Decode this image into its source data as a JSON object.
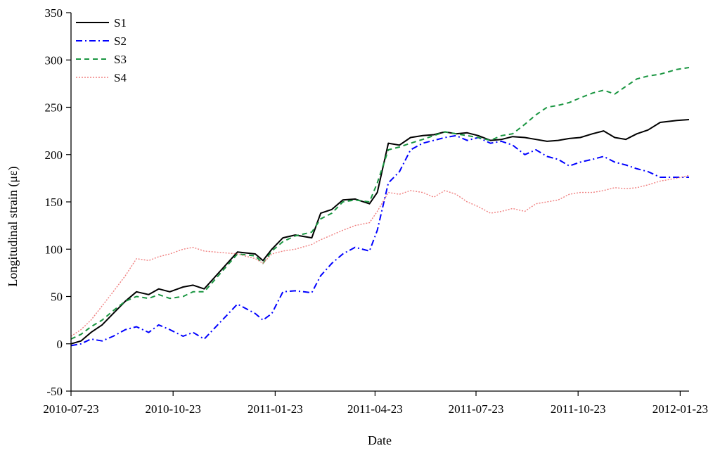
{
  "chart_data": {
    "type": "line",
    "title": "",
    "xlabel": "Date",
    "ylabel": "Longitudinal strain (με)",
    "x_ticks": [
      "2010-07-23",
      "2010-10-23",
      "2011-01-23",
      "2011-04-23",
      "2011-07-23",
      "2011-10-23",
      "2012-01-23"
    ],
    "y_ticks": [
      -50,
      0,
      50,
      100,
      150,
      200,
      250,
      300,
      350
    ],
    "xlim": [
      "2010-07-23",
      "2012-01-31"
    ],
    "ylim": [
      -50,
      350
    ],
    "grid": false,
    "legend_position": "top-left",
    "series": [
      {
        "name": "S1",
        "color": "#000000",
        "style": "solid",
        "points": [
          [
            "2010-07-23",
            0
          ],
          [
            "2010-08-01",
            3
          ],
          [
            "2010-08-10",
            12
          ],
          [
            "2010-08-20",
            20
          ],
          [
            "2010-08-30",
            32
          ],
          [
            "2010-09-10",
            45
          ],
          [
            "2010-09-20",
            55
          ],
          [
            "2010-10-01",
            52
          ],
          [
            "2010-10-10",
            58
          ],
          [
            "2010-10-20",
            55
          ],
          [
            "2010-11-01",
            60
          ],
          [
            "2010-11-10",
            62
          ],
          [
            "2010-11-20",
            58
          ],
          [
            "2010-12-20",
            97
          ],
          [
            "2011-01-05",
            95
          ],
          [
            "2011-01-12",
            88
          ],
          [
            "2011-01-20",
            100
          ],
          [
            "2011-01-30",
            112
          ],
          [
            "2011-02-10",
            115
          ],
          [
            "2011-02-25",
            112
          ],
          [
            "2011-03-05",
            138
          ],
          [
            "2011-03-15",
            142
          ],
          [
            "2011-03-25",
            152
          ],
          [
            "2011-04-05",
            153
          ],
          [
            "2011-04-18",
            148
          ],
          [
            "2011-04-25",
            160
          ],
          [
            "2011-05-05",
            212
          ],
          [
            "2011-05-15",
            210
          ],
          [
            "2011-05-25",
            218
          ],
          [
            "2011-06-05",
            220
          ],
          [
            "2011-06-15",
            221
          ],
          [
            "2011-06-25",
            224
          ],
          [
            "2011-07-05",
            222
          ],
          [
            "2011-07-15",
            223
          ],
          [
            "2011-07-25",
            220
          ],
          [
            "2011-08-05",
            215
          ],
          [
            "2011-08-15",
            216
          ],
          [
            "2011-08-25",
            219
          ],
          [
            "2011-09-05",
            218
          ],
          [
            "2011-09-15",
            216
          ],
          [
            "2011-09-25",
            214
          ],
          [
            "2011-10-05",
            215
          ],
          [
            "2011-10-15",
            217
          ],
          [
            "2011-10-25",
            218
          ],
          [
            "2011-11-05",
            222
          ],
          [
            "2011-11-15",
            225
          ],
          [
            "2011-11-25",
            218
          ],
          [
            "2011-12-05",
            216
          ],
          [
            "2011-12-15",
            222
          ],
          [
            "2011-12-25",
            226
          ],
          [
            "2012-01-05",
            234
          ],
          [
            "2012-01-20",
            236
          ],
          [
            "2012-01-31",
            237
          ]
        ]
      },
      {
        "name": "S2",
        "color": "#0000ff",
        "style": "dashdot",
        "points": [
          [
            "2010-07-23",
            -2
          ],
          [
            "2010-08-01",
            0
          ],
          [
            "2010-08-10",
            5
          ],
          [
            "2010-08-20",
            3
          ],
          [
            "2010-08-30",
            8
          ],
          [
            "2010-09-10",
            15
          ],
          [
            "2010-09-20",
            18
          ],
          [
            "2010-10-01",
            12
          ],
          [
            "2010-10-10",
            20
          ],
          [
            "2010-10-20",
            15
          ],
          [
            "2010-11-01",
            8
          ],
          [
            "2010-11-10",
            12
          ],
          [
            "2010-11-20",
            5
          ],
          [
            "2010-12-20",
            42
          ],
          [
            "2011-01-05",
            32
          ],
          [
            "2011-01-12",
            25
          ],
          [
            "2011-01-20",
            32
          ],
          [
            "2011-01-30",
            55
          ],
          [
            "2011-02-10",
            56
          ],
          [
            "2011-02-25",
            54
          ],
          [
            "2011-03-05",
            72
          ],
          [
            "2011-03-15",
            85
          ],
          [
            "2011-03-25",
            95
          ],
          [
            "2011-04-05",
            102
          ],
          [
            "2011-04-18",
            98
          ],
          [
            "2011-04-25",
            120
          ],
          [
            "2011-05-05",
            170
          ],
          [
            "2011-05-15",
            182
          ],
          [
            "2011-05-25",
            205
          ],
          [
            "2011-06-05",
            212
          ],
          [
            "2011-06-15",
            215
          ],
          [
            "2011-06-25",
            218
          ],
          [
            "2011-07-05",
            220
          ],
          [
            "2011-07-15",
            215
          ],
          [
            "2011-07-25",
            218
          ],
          [
            "2011-08-05",
            212
          ],
          [
            "2011-08-15",
            214
          ],
          [
            "2011-08-25",
            210
          ],
          [
            "2011-09-05",
            200
          ],
          [
            "2011-09-15",
            205
          ],
          [
            "2011-09-25",
            198
          ],
          [
            "2011-10-05",
            195
          ],
          [
            "2011-10-15",
            188
          ],
          [
            "2011-10-25",
            192
          ],
          [
            "2011-11-05",
            195
          ],
          [
            "2011-11-15",
            198
          ],
          [
            "2011-11-25",
            192
          ],
          [
            "2011-12-05",
            189
          ],
          [
            "2011-12-15",
            185
          ],
          [
            "2011-12-25",
            182
          ],
          [
            "2012-01-05",
            176
          ],
          [
            "2012-01-20",
            176
          ],
          [
            "2012-01-31",
            176
          ]
        ]
      },
      {
        "name": "S3",
        "color": "#1a9641",
        "style": "dashed",
        "points": [
          [
            "2010-07-23",
            5
          ],
          [
            "2010-08-01",
            10
          ],
          [
            "2010-08-10",
            18
          ],
          [
            "2010-08-20",
            25
          ],
          [
            "2010-08-30",
            35
          ],
          [
            "2010-09-10",
            45
          ],
          [
            "2010-09-20",
            50
          ],
          [
            "2010-10-01",
            48
          ],
          [
            "2010-10-10",
            52
          ],
          [
            "2010-10-20",
            48
          ],
          [
            "2010-11-01",
            50
          ],
          [
            "2010-11-10",
            55
          ],
          [
            "2010-11-20",
            55
          ],
          [
            "2010-12-20",
            95
          ],
          [
            "2011-01-05",
            93
          ],
          [
            "2011-01-12",
            85
          ],
          [
            "2011-01-20",
            98
          ],
          [
            "2011-01-30",
            108
          ],
          [
            "2011-02-10",
            114
          ],
          [
            "2011-02-25",
            118
          ],
          [
            "2011-03-05",
            132
          ],
          [
            "2011-03-15",
            138
          ],
          [
            "2011-03-25",
            150
          ],
          [
            "2011-04-05",
            152
          ],
          [
            "2011-04-18",
            150
          ],
          [
            "2011-04-25",
            170
          ],
          [
            "2011-05-05",
            205
          ],
          [
            "2011-05-15",
            208
          ],
          [
            "2011-05-25",
            212
          ],
          [
            "2011-06-05",
            216
          ],
          [
            "2011-06-15",
            220
          ],
          [
            "2011-06-25",
            224
          ],
          [
            "2011-07-05",
            222
          ],
          [
            "2011-07-15",
            220
          ],
          [
            "2011-07-25",
            218
          ],
          [
            "2011-08-05",
            215
          ],
          [
            "2011-08-15",
            220
          ],
          [
            "2011-08-25",
            222
          ],
          [
            "2011-09-05",
            232
          ],
          [
            "2011-09-15",
            242
          ],
          [
            "2011-09-25",
            250
          ],
          [
            "2011-10-05",
            252
          ],
          [
            "2011-10-15",
            255
          ],
          [
            "2011-10-25",
            260
          ],
          [
            "2011-11-05",
            265
          ],
          [
            "2011-11-15",
            268
          ],
          [
            "2011-11-25",
            264
          ],
          [
            "2011-12-05",
            272
          ],
          [
            "2011-12-15",
            280
          ],
          [
            "2011-12-25",
            283
          ],
          [
            "2012-01-05",
            285
          ],
          [
            "2012-01-20",
            290
          ],
          [
            "2012-01-31",
            292
          ]
        ]
      },
      {
        "name": "S4",
        "color": "#f08080",
        "style": "dotted",
        "points": [
          [
            "2010-07-23",
            8
          ],
          [
            "2010-08-01",
            15
          ],
          [
            "2010-08-10",
            25
          ],
          [
            "2010-08-20",
            40
          ],
          [
            "2010-08-30",
            55
          ],
          [
            "2010-09-10",
            72
          ],
          [
            "2010-09-20",
            90
          ],
          [
            "2010-10-01",
            88
          ],
          [
            "2010-10-10",
            92
          ],
          [
            "2010-10-20",
            95
          ],
          [
            "2010-11-01",
            100
          ],
          [
            "2010-11-10",
            102
          ],
          [
            "2010-11-20",
            98
          ],
          [
            "2010-12-20",
            95
          ],
          [
            "2011-01-05",
            90
          ],
          [
            "2011-01-12",
            85
          ],
          [
            "2011-01-20",
            95
          ],
          [
            "2011-01-30",
            98
          ],
          [
            "2011-02-10",
            100
          ],
          [
            "2011-02-25",
            105
          ],
          [
            "2011-03-05",
            110
          ],
          [
            "2011-03-15",
            115
          ],
          [
            "2011-03-25",
            120
          ],
          [
            "2011-04-05",
            125
          ],
          [
            "2011-04-18",
            128
          ],
          [
            "2011-04-25",
            140
          ],
          [
            "2011-05-05",
            160
          ],
          [
            "2011-05-15",
            158
          ],
          [
            "2011-05-25",
            162
          ],
          [
            "2011-06-05",
            160
          ],
          [
            "2011-06-15",
            155
          ],
          [
            "2011-06-25",
            162
          ],
          [
            "2011-07-05",
            158
          ],
          [
            "2011-07-15",
            150
          ],
          [
            "2011-07-25",
            145
          ],
          [
            "2011-08-05",
            138
          ],
          [
            "2011-08-15",
            140
          ],
          [
            "2011-08-25",
            143
          ],
          [
            "2011-09-05",
            140
          ],
          [
            "2011-09-15",
            148
          ],
          [
            "2011-09-25",
            150
          ],
          [
            "2011-10-05",
            152
          ],
          [
            "2011-10-15",
            158
          ],
          [
            "2011-10-25",
            160
          ],
          [
            "2011-11-05",
            160
          ],
          [
            "2011-11-15",
            162
          ],
          [
            "2011-11-25",
            165
          ],
          [
            "2011-12-05",
            164
          ],
          [
            "2011-12-15",
            165
          ],
          [
            "2011-12-25",
            168
          ],
          [
            "2012-01-05",
            172
          ],
          [
            "2012-01-20",
            175
          ],
          [
            "2012-01-31",
            178
          ]
        ]
      }
    ]
  }
}
